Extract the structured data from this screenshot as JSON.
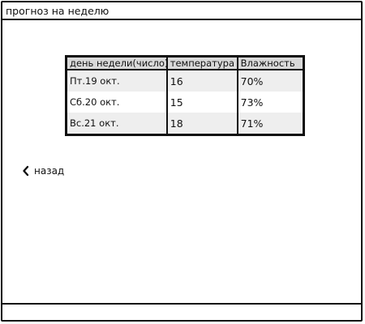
{
  "window": {
    "title": "прогноз на неделю"
  },
  "forecast_table": {
    "headers": [
      "день недели(число)",
      "температура",
      "Влажность"
    ],
    "rows": [
      {
        "day": "Пт.19 окт.",
        "temperature": "16",
        "humidity": "70%"
      },
      {
        "day": "Сб.20 окт.",
        "temperature": "15",
        "humidity": "73%"
      },
      {
        "day": "Вс.21 окт.",
        "temperature": "18",
        "humidity": "71%"
      }
    ]
  },
  "navigation": {
    "back_label": "назад",
    "back_icon": "chevron-left-icon"
  }
}
